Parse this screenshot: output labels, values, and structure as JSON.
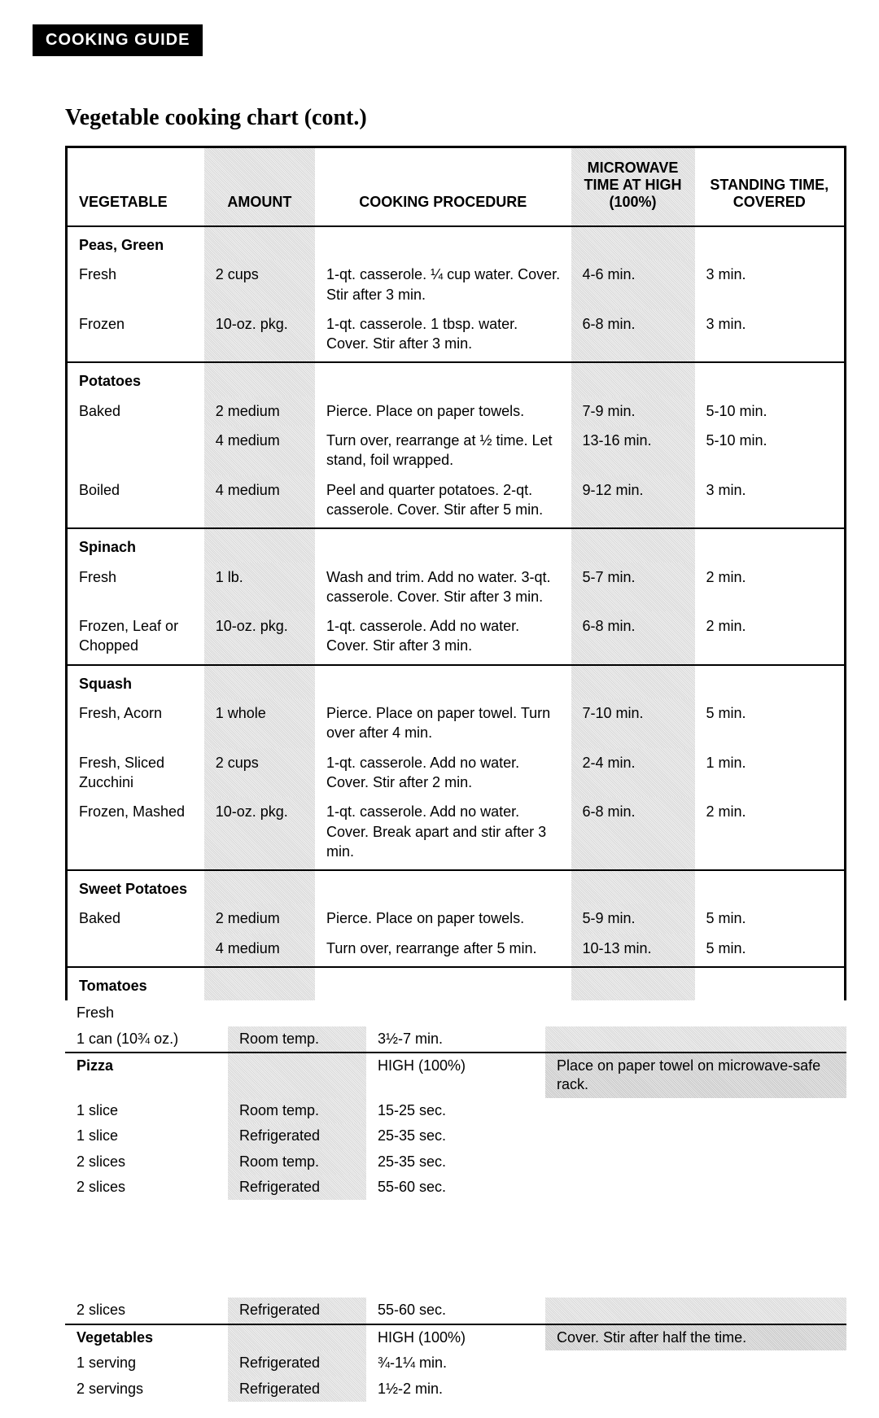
{
  "tab": "COOKING GUIDE",
  "title": "Vegetable cooking chart (cont.)",
  "headers": {
    "veg": "VEGETABLE",
    "amt": "AMOUNT",
    "proc": "COOKING PROCEDURE",
    "time": "MICROWAVE TIME AT HIGH (100%)",
    "stand": "STANDING TIME, COVERED"
  },
  "sections": [
    {
      "name": "Peas, Green",
      "rows": [
        {
          "sub": "Fresh",
          "amt": "2 cups",
          "proc": "1-qt. casserole. ¼ cup water. Cover. Stir after 3 min.",
          "time": "4-6 min.",
          "stand": "3 min."
        },
        {
          "sub": "Frozen",
          "amt": "10-oz. pkg.",
          "proc": "1-qt. casserole. 1 tbsp. water. Cover. Stir after 3 min.",
          "time": "6-8 min.",
          "stand": "3 min."
        }
      ]
    },
    {
      "name": "Potatoes",
      "rows": [
        {
          "sub": "Baked",
          "amt": "2 medium",
          "proc": "Pierce. Place on paper towels.",
          "time": "7-9 min.",
          "stand": "5-10 min."
        },
        {
          "sub": "",
          "amt": "4 medium",
          "proc": "Turn over, rearrange at ½ time. Let stand, foil wrapped.",
          "time": "13-16 min.",
          "stand": "5-10 min."
        },
        {
          "sub": "Boiled",
          "amt": "4 medium",
          "proc": "Peel and quarter potatoes. 2-qt. casserole. Cover. Stir after 5 min.",
          "time": "9-12 min.",
          "stand": "3 min."
        }
      ]
    },
    {
      "name": "Spinach",
      "rows": [
        {
          "sub": "Fresh",
          "amt": "1 lb.",
          "proc": "Wash and trim. Add no water. 3-qt. casserole. Cover. Stir after 3 min.",
          "time": "5-7 min.",
          "stand": "2 min."
        },
        {
          "sub": "Frozen, Leaf or Chopped",
          "amt": "10-oz. pkg.",
          "proc": "1-qt. casserole. Add no water. Cover. Stir after 3 min.",
          "time": "6-8 min.",
          "stand": "2 min."
        }
      ]
    },
    {
      "name": "Squash",
      "rows": [
        {
          "sub": "Fresh, Acorn",
          "amt": "1 whole",
          "proc": "Pierce. Place on paper towel. Turn over after 4 min.",
          "time": "7-10 min.",
          "stand": "5 min."
        },
        {
          "sub": "Fresh, Sliced Zucchini",
          "amt": "2 cups",
          "proc": "1-qt. casserole. Add no water. Cover. Stir after 2 min.",
          "time": "2-4 min.",
          "stand": "1 min."
        },
        {
          "sub": "Frozen, Mashed",
          "amt": "10-oz. pkg.",
          "proc": "1-qt. casserole. Add no water. Cover. Break apart and stir after 3 min.",
          "time": "6-8 min.",
          "stand": "2 min."
        }
      ]
    },
    {
      "name": "Sweet Potatoes",
      "rows": [
        {
          "sub": "Baked",
          "amt": "2 medium",
          "proc": "Pierce. Place on paper towels.",
          "time": "5-9 min.",
          "stand": "5 min."
        },
        {
          "sub": "",
          "amt": "4 medium",
          "proc": "Turn over, rearrange after 5 min.",
          "time": "10-13 min.",
          "stand": "5 min."
        }
      ]
    },
    {
      "name": "Tomatoes",
      "rows": []
    }
  ],
  "fragments": {
    "freshCut": "Fresh",
    "soup": {
      "label": "1 can (10¾ oz.)",
      "temp": "Room temp.",
      "time": "3½-7 min."
    },
    "pizza": {
      "title": "Pizza",
      "power": "HIGH (100%)",
      "note": "Place on paper towel on microwave-safe rack.",
      "rows": [
        {
          "q": "1 slice",
          "temp": "Room temp.",
          "t": "15-25 sec."
        },
        {
          "q": "1 slice",
          "temp": "Refrigerated",
          "t": "25-35 sec."
        },
        {
          "q": "2 slices",
          "temp": "Room temp.",
          "t": "25-35 sec."
        },
        {
          "q": "2 slices",
          "temp": "Refrigerated",
          "t": "55-60 sec."
        }
      ]
    },
    "slicesCut": {
      "q": "2 slices",
      "temp": "Refrigerated",
      "t": "55-60 sec."
    },
    "veg": {
      "title": "Vegetables",
      "power": "HIGH (100%)",
      "note": "Cover. Stir after half the time.",
      "rows": [
        {
          "q": "1 serving",
          "temp": "Refrigerated",
          "t": "¾-1¼ min."
        },
        {
          "q": "2 servings",
          "temp": "Refrigerated",
          "t": "1½-2 min."
        }
      ]
    }
  }
}
